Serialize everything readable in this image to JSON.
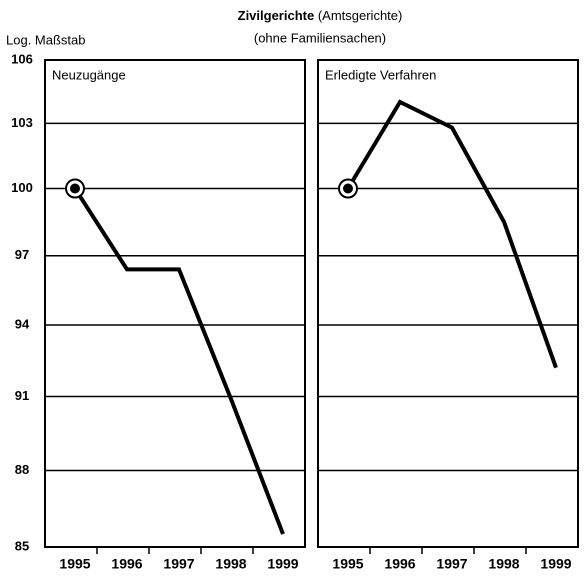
{
  "chart_data": {
    "type": "line",
    "title": "Zivilgerichte",
    "title_note": "(Amtsgerichte)",
    "subtitle": "(ohne Familiensachen)",
    "y_label": "Log. Maßstab",
    "log_scale": true,
    "grid": true,
    "ylim": [
      85,
      106
    ],
    "yticks": [
      85,
      88,
      91,
      94,
      97,
      100,
      103,
      106
    ],
    "categories": [
      "1995",
      "1996",
      "1997",
      "1998",
      "1999"
    ],
    "series": [
      {
        "name": "Neuzugänge",
        "color": "#000000",
        "values": [
          100,
          96.4,
          96.4,
          90.9,
          85.5
        ]
      },
      {
        "name": "Erledigte Verfahren",
        "color": "#000000",
        "values": [
          100,
          104.0,
          102.8,
          98.5,
          92.2
        ]
      }
    ]
  }
}
